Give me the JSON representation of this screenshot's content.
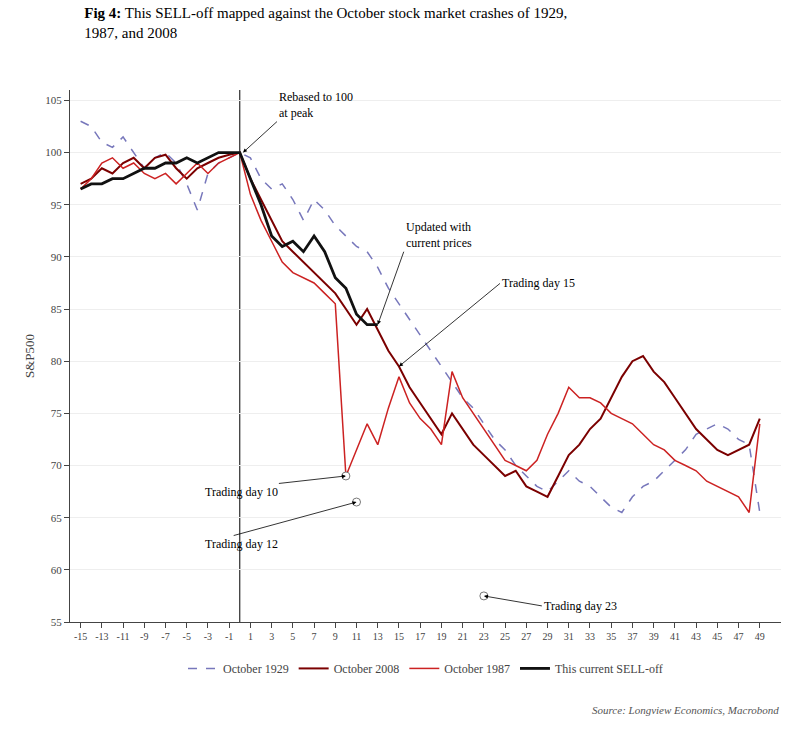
{
  "chart_data": {
    "type": "line",
    "title": "Fig 4:",
    "subtitle": "This SELL-off mapped against the October stock market crashes of 1929,\n1987, and 2008",
    "ylabel": "S&P500",
    "xlim": [
      -16,
      51
    ],
    "ylim": [
      55,
      106
    ],
    "yticks": [
      55,
      60,
      65,
      70,
      75,
      80,
      85,
      90,
      95,
      100,
      105
    ],
    "xticks": [
      -15,
      -13,
      -11,
      -9,
      -7,
      -5,
      -3,
      -1,
      1,
      3,
      5,
      7,
      9,
      11,
      13,
      15,
      17,
      19,
      21,
      23,
      25,
      27,
      29,
      31,
      33,
      35,
      37,
      39,
      41,
      43,
      45,
      47,
      49
    ],
    "grid": "y",
    "legend": "bottom",
    "vline": 0,
    "series": [
      {
        "name": "October 1929",
        "color": "#7777bb",
        "line_style": "dashed",
        "x": [
          -15,
          -14,
          -13,
          -12,
          -11,
          -10,
          -9,
          -8,
          -7,
          -6,
          -5,
          -4,
          -3,
          -2,
          -1,
          0,
          1,
          2,
          3,
          4,
          5,
          6,
          7,
          8,
          9,
          10,
          11,
          12,
          13,
          14,
          15,
          16,
          17,
          18,
          19,
          20,
          21,
          22,
          23,
          24,
          25,
          26,
          27,
          28,
          29,
          30,
          31,
          32,
          33,
          34,
          35,
          36,
          37,
          38,
          39,
          40,
          41,
          42,
          43,
          44,
          45,
          46,
          47,
          48,
          49
        ],
        "values": [
          103.0,
          102.5,
          101.0,
          100.5,
          101.5,
          100.0,
          98.5,
          99.5,
          100.0,
          99.0,
          97.0,
          94.5,
          98.0,
          99.0,
          99.5,
          100.0,
          99.5,
          97.5,
          96.5,
          97.0,
          95.5,
          93.5,
          95.5,
          94.5,
          93.0,
          92.0,
          91.0,
          90.5,
          89.0,
          87.0,
          85.5,
          84.0,
          82.5,
          81.0,
          79.5,
          78.0,
          76.5,
          75.5,
          74.0,
          72.5,
          71.5,
          70.0,
          69.0,
          68.0,
          67.5,
          68.5,
          69.5,
          68.5,
          68.0,
          67.0,
          66.0,
          65.5,
          67.0,
          68.0,
          68.5,
          69.5,
          70.5,
          71.5,
          73.0,
          73.5,
          74.0,
          73.5,
          72.5,
          72.0,
          65.5
        ]
      },
      {
        "name": "October 2008",
        "color": "#7b0000",
        "line_style": "solid",
        "x": [
          -15,
          -14,
          -13,
          -12,
          -11,
          -10,
          -9,
          -8,
          -7,
          -6,
          -5,
          -4,
          -3,
          -2,
          -1,
          0,
          1,
          2,
          3,
          4,
          5,
          6,
          7,
          8,
          9,
          10,
          11,
          12,
          13,
          14,
          15,
          16,
          17,
          18,
          19,
          20,
          21,
          22,
          23,
          24,
          25,
          26,
          27,
          28,
          29,
          30,
          31,
          32,
          33,
          34,
          35,
          36,
          37,
          38,
          39,
          40,
          41,
          42,
          43,
          44,
          45,
          46,
          47,
          48,
          49
        ],
        "values": [
          97.0,
          97.5,
          98.5,
          98.0,
          99.0,
          99.5,
          98.5,
          99.5,
          99.8,
          98.5,
          97.5,
          98.5,
          99.0,
          99.5,
          99.8,
          100.0,
          97.5,
          95.5,
          93.5,
          91.5,
          90.5,
          89.5,
          88.5,
          87.5,
          86.5,
          85.0,
          83.5,
          85.0,
          83.0,
          81.0,
          79.5,
          77.5,
          76.0,
          74.5,
          73.0,
          75.0,
          73.5,
          72.0,
          71.0,
          70.0,
          69.0,
          69.5,
          68.0,
          67.5,
          67.0,
          69.0,
          71.0,
          72.0,
          73.5,
          74.5,
          76.5,
          78.5,
          80.0,
          80.5,
          79.0,
          78.0,
          76.5,
          75.0,
          73.5,
          72.5,
          71.5,
          71.0,
          71.5,
          72.0,
          74.5
        ]
      },
      {
        "name": "October 1987",
        "color": "#cc2222",
        "line_style": "solid",
        "x": [
          -15,
          -14,
          -13,
          -12,
          -11,
          -10,
          -9,
          -8,
          -7,
          -6,
          -5,
          -4,
          -3,
          -2,
          -1,
          0,
          1,
          2,
          3,
          4,
          5,
          6,
          7,
          8,
          9,
          10,
          11,
          12,
          13,
          14,
          15,
          16,
          17,
          18,
          19,
          20,
          21,
          22,
          23,
          24,
          25,
          26,
          27,
          28,
          29,
          30,
          31,
          32,
          33,
          34,
          35,
          36,
          37,
          38,
          39,
          40,
          41,
          42,
          43,
          44,
          45,
          46,
          47,
          48,
          49
        ],
        "values": [
          96.5,
          97.5,
          99.0,
          99.5,
          98.5,
          99.0,
          98.0,
          97.5,
          98.0,
          97.0,
          98.0,
          99.0,
          98.0,
          99.0,
          99.5,
          100.0,
          96.0,
          93.5,
          91.5,
          89.5,
          88.5,
          88.0,
          87.5,
          86.5,
          85.5,
          69.0,
          71.5,
          74.0,
          72.0,
          75.5,
          78.5,
          76.0,
          74.5,
          73.5,
          72.0,
          79.0,
          76.5,
          75.0,
          73.5,
          72.0,
          70.5,
          70.0,
          69.5,
          70.5,
          73.0,
          75.0,
          77.5,
          76.5,
          76.5,
          76.0,
          75.0,
          74.5,
          74.0,
          73.0,
          72.0,
          71.5,
          70.5,
          70.0,
          69.5,
          68.5,
          68.0,
          67.5,
          67.0,
          65.5,
          74.0
        ]
      },
      {
        "name": "This current SELL-off",
        "color": "#111111",
        "line_style": "solid",
        "x": [
          -15,
          -14,
          -13,
          -12,
          -11,
          -10,
          -9,
          -8,
          -7,
          -6,
          -5,
          -4,
          -3,
          -2,
          -1,
          0,
          1,
          2,
          3,
          4,
          5,
          6,
          7,
          8,
          9,
          10,
          11,
          12,
          13
        ],
        "values": [
          96.5,
          97.0,
          97.0,
          97.5,
          97.5,
          98.0,
          98.5,
          98.5,
          99.0,
          99.0,
          99.5,
          99.0,
          99.5,
          100.0,
          100.0,
          100.0,
          97.5,
          95.0,
          92.0,
          91.0,
          91.5,
          90.5,
          92.0,
          90.5,
          88.0,
          87.0,
          84.5,
          83.5,
          83.5
        ]
      }
    ],
    "annotations": [
      {
        "text": "Rebased to 100\nat peak",
        "x": 0.3,
        "y": 100.0
      },
      {
        "text": "Updated with\ncurrent prices",
        "x": 13.0,
        "y": 83.5
      },
      {
        "text": "Trading day 10",
        "x": 10,
        "y": 69.0,
        "marker": "circle"
      },
      {
        "text": "Trading day 12",
        "x": 11,
        "y": 66.5,
        "marker": "circle"
      },
      {
        "text": "Trading day 15",
        "x": 15,
        "y": 79.5
      },
      {
        "text": "Trading day 23",
        "x": 23,
        "y": 57.5,
        "marker": "circle"
      },
      {
        "text": "Source: Longview Economics, Macrobond"
      }
    ]
  }
}
